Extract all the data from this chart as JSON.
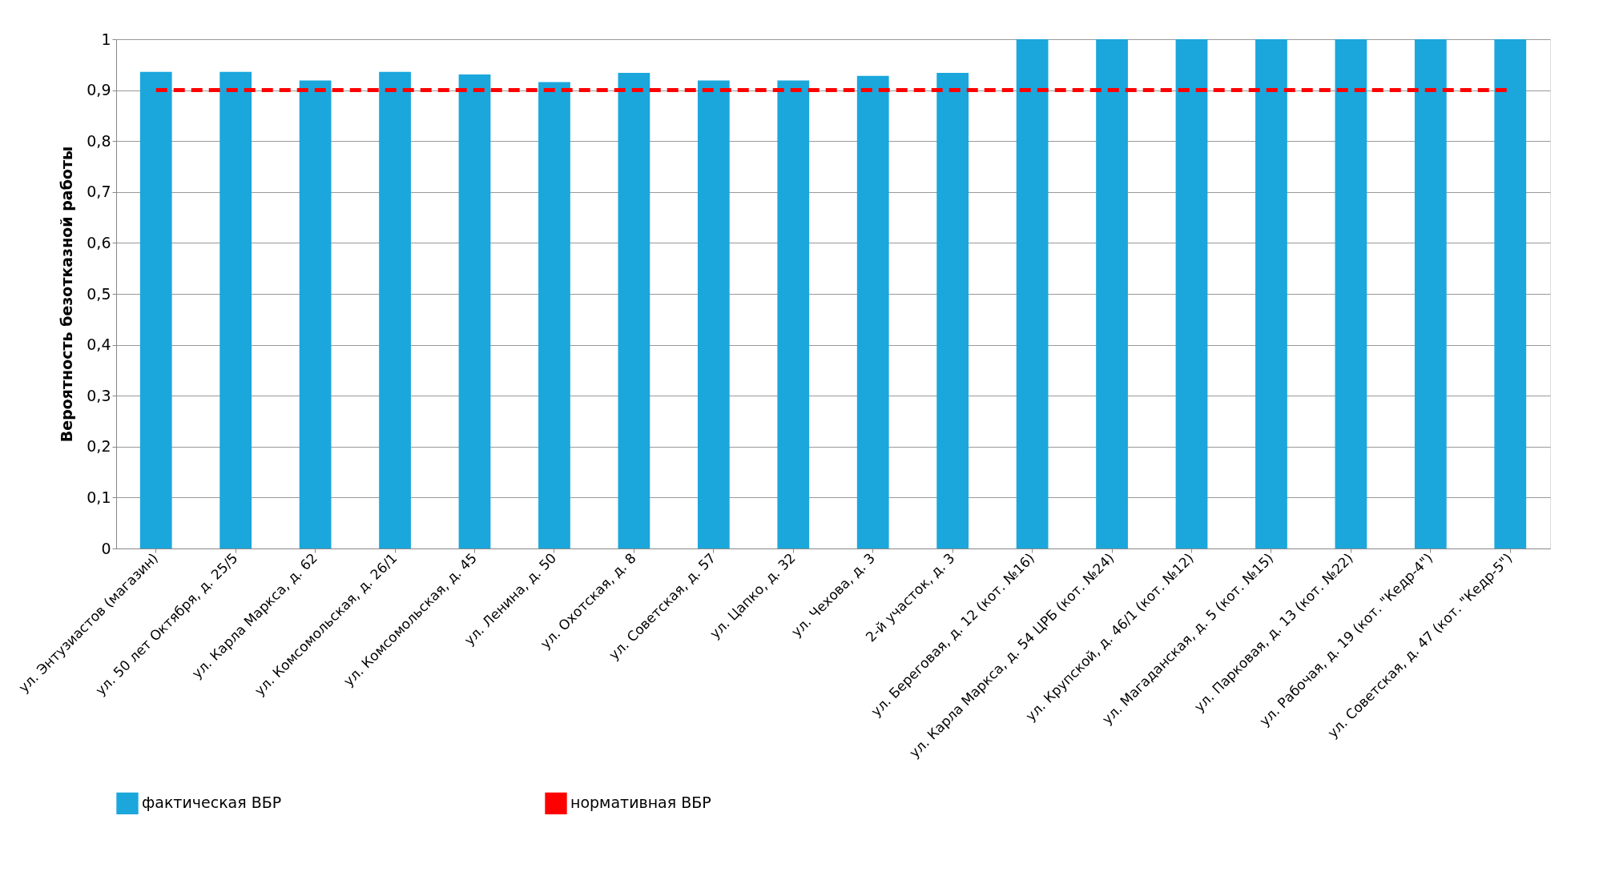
{
  "chart_data": {
    "type": "bar",
    "ylabel": "Вероятность безотказной работы",
    "categories": [
      "ул. Энтузиастов (магазин)",
      "ул. 50 лет Октября, д. 25/5",
      "ул. Карла Маркса, д. 62",
      "ул. Комсомольская, д. 26/1",
      "ул. Комсомольская, д. 45",
      "ул. Ленина, д. 50",
      "ул. Охотская, д. 8",
      "ул. Советская, д. 57",
      "ул. Цапко, д. 32",
      "ул. Чехова, д. 3",
      "2-й участок, д. 3",
      "ул. Береговая, д. 12 (кот. №16)",
      "ул. Карла Маркса, д. 54 ЦРБ (кот. №24)",
      "ул. Крупской, д. 46/1 (кот. №12)",
      "ул. Магаданская, д. 5 (кот. №15)",
      "ул. Парковая, д. 13 (кот. №22)",
      "ул. Рабочая, д. 19 (кот. \"Кедр-4\")",
      "ул. Советская, д. 47 (кот. \"Кедр-5\")"
    ],
    "series": [
      {
        "name": "фактическая ВБР",
        "color": "#1ba7dc",
        "values": [
          0.936,
          0.936,
          0.919,
          0.936,
          0.931,
          0.916,
          0.934,
          0.919,
          0.919,
          0.928,
          0.934,
          1,
          1,
          1,
          1,
          1,
          1,
          1
        ]
      },
      {
        "name": "нормативная ВБР",
        "type": "line",
        "line_style": "dashed",
        "color": "#ff0000",
        "values": [
          0.9,
          0.9,
          0.9,
          0.9,
          0.9,
          0.9,
          0.9,
          0.9,
          0.9,
          0.9,
          0.9,
          0.9,
          0.9,
          0.9,
          0.9,
          0.9,
          0.9,
          0.9
        ]
      }
    ],
    "ylim": [
      0,
      1
    ],
    "yticks": [
      0,
      {
        "value": 0.1,
        "label": "0,1"
      },
      {
        "value": 0.2,
        "label": "0,2"
      },
      {
        "value": 0.3,
        "label": "0,3"
      },
      {
        "value": 0.4,
        "label": "0,4"
      },
      {
        "value": 0.5,
        "label": "0,5"
      },
      {
        "value": 0.6,
        "label": "0,6"
      },
      {
        "value": 0.7,
        "label": "0,7"
      },
      {
        "value": 0.8,
        "label": "0,8"
      },
      {
        "value": 0.9,
        "label": "0,9"
      },
      1
    ],
    "grid": "y",
    "legend": "bottom"
  }
}
